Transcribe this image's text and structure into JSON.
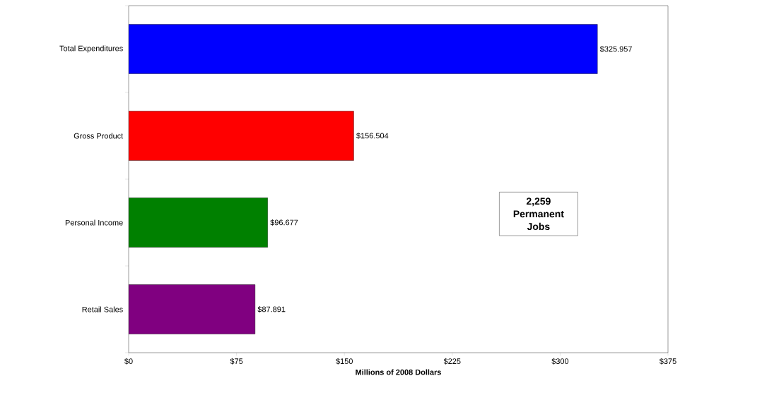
{
  "chart_data": {
    "type": "bar",
    "orientation": "horizontal",
    "xlabel": "Millions of 2008 Dollars",
    "categories": [
      "Total Expenditures",
      "Gross Product",
      "Personal Income",
      "Retail Sales"
    ],
    "values": [
      325.957,
      156.504,
      96.677,
      87.891
    ],
    "colors": [
      "#0000ff",
      "#ff0000",
      "#008000",
      "#800080"
    ],
    "value_labels": [
      "$325.957",
      "$156.504",
      "$96.677",
      "$87.891"
    ],
    "xlim": [
      0,
      375
    ],
    "xticks": [
      {
        "value": 0,
        "label": "$0"
      },
      {
        "value": 75,
        "label": "$75"
      },
      {
        "value": 150,
        "label": "$150"
      },
      {
        "value": 225,
        "label": "$225"
      },
      {
        "value": 300,
        "label": "$300"
      },
      {
        "value": 375,
        "label": "$375"
      }
    ],
    "annotations": [
      "2,259 Permanent Jobs"
    ]
  }
}
